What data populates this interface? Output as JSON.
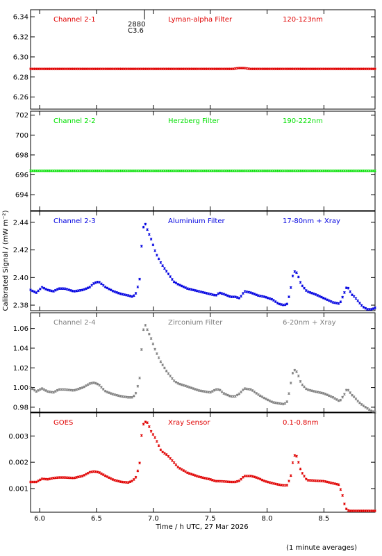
{
  "footer": {
    "xlabel": "Time / h UTC, 27 Mar 2026",
    "ylabel": "Calibrated Signal / (mW m⁻²)",
    "note": "(1 minute averages)",
    "marker_top": "2880",
    "marker_bottom": "C3.6"
  },
  "chart_data": [
    {
      "type": "scatter",
      "channel": "Channel 2-1",
      "filter": "Lyman-alpha Filter",
      "band": "120-123nm",
      "color": "#e00000",
      "xlim": [
        5.92,
        8.95
      ],
      "ylim": [
        6.248,
        6.347
      ],
      "xticks": [
        6.0,
        6.5,
        7.0,
        7.5,
        8.0,
        8.5
      ],
      "xticklabels": [],
      "yticks": [
        6.26,
        6.28,
        6.3,
        6.32,
        6.34
      ],
      "yticklabels": [
        "6.26",
        "6.28",
        "6.30",
        "6.32",
        "6.34"
      ],
      "series": [
        {
          "x": [
            5.92,
            7.7,
            7.75,
            7.8,
            7.85,
            8.95
          ],
          "y": [
            6.288,
            6.288,
            6.289,
            6.289,
            6.288,
            6.288
          ]
        }
      ]
    },
    {
      "type": "scatter",
      "channel": "Channel 2-2",
      "filter": "Herzberg Filter",
      "band": "190-222nm",
      "color": "#00e000",
      "xlim": [
        5.92,
        8.95
      ],
      "ylim": [
        692.4,
        702.4
      ],
      "xticks": [
        6.0,
        6.5,
        7.0,
        7.5,
        8.0,
        8.5
      ],
      "xticklabels": [],
      "yticks": [
        694,
        696,
        698,
        700,
        702
      ],
      "yticklabels": [
        "694",
        "696",
        "698",
        "700",
        "702"
      ],
      "series": [
        {
          "x": [
            5.92,
            8.95
          ],
          "y": [
            696.4,
            696.4
          ]
        }
      ]
    },
    {
      "type": "scatter",
      "channel": "Channel 2-3",
      "filter": "Aluminium Filter",
      "band": "17-80nm + Xray",
      "color": "#0000e0",
      "xlim": [
        5.92,
        8.95
      ],
      "ylim": [
        2.376,
        2.448
      ],
      "xticks": [
        6.0,
        6.5,
        7.0,
        7.5,
        8.0,
        8.5
      ],
      "xticklabels": [],
      "yticks": [
        2.38,
        2.4,
        2.42,
        2.44
      ],
      "yticklabels": [
        "2.38",
        "2.40",
        "2.42",
        "2.44"
      ],
      "series": [
        {
          "x": [
            5.92,
            5.97,
            6.02,
            6.07,
            6.12,
            6.17,
            6.22,
            6.3,
            6.38,
            6.44,
            6.48,
            6.52,
            6.58,
            6.65,
            6.72,
            6.78,
            6.82,
            6.85,
            6.88,
            6.9,
            6.92,
            6.95,
            6.98,
            7.02,
            7.07,
            7.12,
            7.18,
            7.22,
            7.3,
            7.4,
            7.5,
            7.55,
            7.58,
            7.62,
            7.68,
            7.72,
            7.76,
            7.8,
            7.86,
            7.92,
            7.98,
            8.05,
            8.1,
            8.15,
            8.18,
            8.21,
            8.23,
            8.25,
            8.27,
            8.3,
            8.35,
            8.42,
            8.5,
            8.58,
            8.64,
            8.68,
            8.7,
            8.72,
            8.74,
            8.77,
            8.8,
            8.84,
            8.88,
            8.92,
            8.95
          ],
          "y": [
            2.391,
            2.389,
            2.393,
            2.391,
            2.39,
            2.392,
            2.392,
            2.39,
            2.391,
            2.393,
            2.396,
            2.397,
            2.393,
            2.39,
            2.388,
            2.387,
            2.386,
            2.389,
            2.399,
            2.428,
            2.441,
            2.434,
            2.428,
            2.418,
            2.41,
            2.404,
            2.397,
            2.395,
            2.392,
            2.39,
            2.388,
            2.387,
            2.389,
            2.388,
            2.386,
            2.386,
            2.385,
            2.39,
            2.389,
            2.387,
            2.386,
            2.384,
            2.381,
            2.38,
            2.381,
            2.393,
            2.403,
            2.405,
            2.402,
            2.395,
            2.39,
            2.388,
            2.385,
            2.382,
            2.381,
            2.389,
            2.393,
            2.392,
            2.388,
            2.386,
            2.383,
            2.379,
            2.377,
            2.377,
            2.378
          ]
        }
      ]
    },
    {
      "type": "scatter",
      "channel": "Channel 2-4",
      "filter": "Zirconium Filter",
      "band": "6-20nm + Xray",
      "color": "#808080",
      "xlim": [
        5.92,
        8.95
      ],
      "ylim": [
        0.975,
        1.076
      ],
      "xticks": [
        6.0,
        6.5,
        7.0,
        7.5,
        8.0,
        8.5
      ],
      "xticklabels": [],
      "yticks": [
        0.98,
        1.0,
        1.02,
        1.04,
        1.06
      ],
      "yticklabels": [
        "0.98",
        "1.00",
        "1.02",
        "1.04",
        "1.06"
      ],
      "series": [
        {
          "x": [
            5.92,
            5.97,
            6.02,
            6.07,
            6.12,
            6.17,
            6.22,
            6.3,
            6.38,
            6.44,
            6.48,
            6.52,
            6.58,
            6.65,
            6.72,
            6.78,
            6.82,
            6.85,
            6.88,
            6.9,
            6.92,
            6.95,
            6.98,
            7.02,
            7.07,
            7.12,
            7.18,
            7.22,
            7.3,
            7.4,
            7.5,
            7.55,
            7.58,
            7.62,
            7.68,
            7.72,
            7.76,
            7.8,
            7.86,
            7.92,
            7.98,
            8.05,
            8.1,
            8.15,
            8.18,
            8.21,
            8.23,
            8.25,
            8.27,
            8.3,
            8.35,
            8.42,
            8.5,
            8.58,
            8.64,
            8.68,
            8.7,
            8.72,
            8.74,
            8.77,
            8.8,
            8.84,
            8.88,
            8.92,
            8.95
          ],
          "y": [
            1.0,
            0.996,
            0.999,
            0.996,
            0.995,
            0.998,
            0.998,
            0.997,
            1.0,
            1.004,
            1.005,
            1.003,
            0.996,
            0.993,
            0.991,
            0.99,
            0.99,
            0.995,
            1.01,
            1.045,
            1.066,
            1.058,
            1.05,
            1.037,
            1.025,
            1.016,
            1.007,
            1.004,
            1.001,
            0.997,
            0.995,
            0.998,
            0.998,
            0.994,
            0.991,
            0.991,
            0.994,
            0.999,
            0.998,
            0.993,
            0.989,
            0.985,
            0.984,
            0.983,
            0.986,
            1.005,
            1.017,
            1.018,
            1.014,
            1.004,
            0.998,
            0.996,
            0.994,
            0.99,
            0.986,
            0.993,
            0.998,
            0.997,
            0.993,
            0.99,
            0.986,
            0.982,
            0.979,
            0.976,
            0.975
          ]
        }
      ]
    },
    {
      "type": "scatter",
      "channel": "GOES",
      "filter": "Xray Sensor",
      "band": "0.1-0.8nm",
      "color": "#e00000",
      "xlim": [
        5.92,
        8.95
      ],
      "ylim": [
        0.0001,
        0.00388
      ],
      "xticks": [
        6.0,
        6.5,
        7.0,
        7.5,
        8.0,
        8.5
      ],
      "xticklabels": [
        "6.0",
        "6.5",
        "7.0",
        "7.5",
        "8.0",
        "8.5"
      ],
      "yticks": [
        0.001,
        0.002,
        0.003
      ],
      "yticklabels": [
        "0.001",
        "0.002",
        "0.003"
      ],
      "series": [
        {
          "x": [
            5.92,
            5.97,
            6.02,
            6.07,
            6.12,
            6.17,
            6.22,
            6.3,
            6.38,
            6.44,
            6.48,
            6.52,
            6.58,
            6.65,
            6.72,
            6.78,
            6.82,
            6.85,
            6.88,
            6.9,
            6.92,
            6.95,
            6.98,
            7.02,
            7.07,
            7.12,
            7.18,
            7.22,
            7.3,
            7.4,
            7.5,
            7.55,
            7.58,
            7.62,
            7.68,
            7.72,
            7.76,
            7.8,
            7.86,
            7.92,
            7.98,
            8.05,
            8.1,
            8.15,
            8.18,
            8.21,
            8.23,
            8.25,
            8.27,
            8.3,
            8.35,
            8.42,
            8.5,
            8.58,
            8.63,
            8.66,
            8.67,
            8.69,
            8.72,
            8.77,
            8.82,
            8.88,
            8.95
          ],
          "y": [
            0.00125,
            0.00125,
            0.00137,
            0.00135,
            0.0014,
            0.00142,
            0.00142,
            0.0014,
            0.00148,
            0.00162,
            0.00165,
            0.00162,
            0.00148,
            0.00133,
            0.00125,
            0.00123,
            0.0013,
            0.00145,
            0.00198,
            0.00325,
            0.00355,
            0.0035,
            0.00318,
            0.0029,
            0.00242,
            0.00228,
            0.002,
            0.0018,
            0.0016,
            0.00145,
            0.00135,
            0.00128,
            0.00128,
            0.00127,
            0.00125,
            0.00125,
            0.0013,
            0.00148,
            0.00148,
            0.0014,
            0.00128,
            0.0012,
            0.00115,
            0.00112,
            0.00113,
            0.0015,
            0.0021,
            0.00235,
            0.0021,
            0.00165,
            0.00132,
            0.0013,
            0.00128,
            0.0012,
            0.00115,
            0.00082,
            0.0006,
            0.00025,
            0.00015,
            0.00015,
            0.00015,
            0.00015,
            0.00015
          ]
        }
      ]
    }
  ]
}
